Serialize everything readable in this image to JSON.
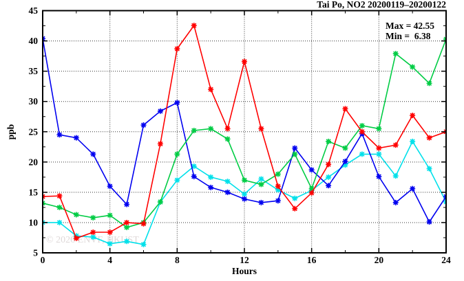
{
  "title": "Tai Po, NO2 20200119–20200122",
  "watermark": "© 2026 ENVF, HKUST",
  "annotation": {
    "max_line": "Max = 42.55",
    "min_line": "Min =  6.38"
  },
  "chart_data": {
    "type": "line",
    "title": "Tai Po, NO2 20200119–20200122",
    "xlabel": "Hours",
    "ylabel": "ppb",
    "xlim": [
      0,
      24
    ],
    "ylim": [
      5,
      45
    ],
    "x_major_ticks": [
      0,
      4,
      8,
      12,
      16,
      20,
      24
    ],
    "x_minor_ticks": [
      2,
      6,
      10,
      14,
      18,
      22
    ],
    "y_major_ticks": [
      5,
      10,
      15,
      20,
      25,
      30,
      35,
      40,
      45
    ],
    "y_minor_ticks": [
      7.5,
      12.5,
      17.5,
      22.5,
      27.5,
      32.5,
      37.5,
      42.5
    ],
    "grid": "dotted lines at interior major ticks",
    "legend_position": "none",
    "annotations": [
      "Max = 42.55",
      "Min = 6.38"
    ],
    "marker": "asterisk",
    "x": [
      0,
      1,
      2,
      3,
      4,
      5,
      6,
      7,
      8,
      9,
      10,
      11,
      12,
      13,
      14,
      15,
      16,
      17,
      18,
      19,
      20,
      21,
      22,
      23,
      24
    ],
    "series": [
      {
        "name": "cyan",
        "color": "#00e0ea",
        "values": [
          10.0,
          10.0,
          7.8,
          7.6,
          6.5,
          6.9,
          6.38,
          13.4,
          17.0,
          19.3,
          17.5,
          16.8,
          14.7,
          17.2,
          15.4,
          14.0,
          15.3,
          17.5,
          19.5,
          21.3,
          21.3,
          17.7,
          23.4,
          18.9,
          13.4
        ]
      },
      {
        "name": "blue",
        "color": "#0000f0",
        "values": [
          40.4,
          24.5,
          24.0,
          21.3,
          16.0,
          13.0,
          26.1,
          28.4,
          29.8,
          17.6,
          15.8,
          15.0,
          13.9,
          13.3,
          13.6,
          22.3,
          18.7,
          16.1,
          20.1,
          24.7,
          17.6,
          13.3,
          15.6,
          10.1,
          14.3
        ]
      },
      {
        "name": "green",
        "color": "#00cc44",
        "values": [
          13.2,
          12.5,
          11.3,
          10.8,
          11.2,
          9.2,
          10.0,
          13.4,
          21.3,
          25.2,
          25.5,
          23.8,
          17.0,
          16.3,
          18.0,
          21.3,
          15.6,
          23.4,
          22.3,
          26.0,
          25.5,
          37.9,
          35.7,
          33.0,
          40.3
        ]
      },
      {
        "name": "red",
        "color": "#ff0000",
        "values": [
          14.3,
          14.4,
          7.4,
          8.4,
          8.4,
          10.0,
          9.8,
          23.0,
          38.7,
          42.55,
          32.0,
          25.5,
          36.6,
          25.5,
          16.0,
          12.3,
          14.9,
          19.6,
          28.8,
          25.0,
          22.3,
          22.8,
          27.7,
          24.0,
          25.0
        ]
      }
    ]
  }
}
